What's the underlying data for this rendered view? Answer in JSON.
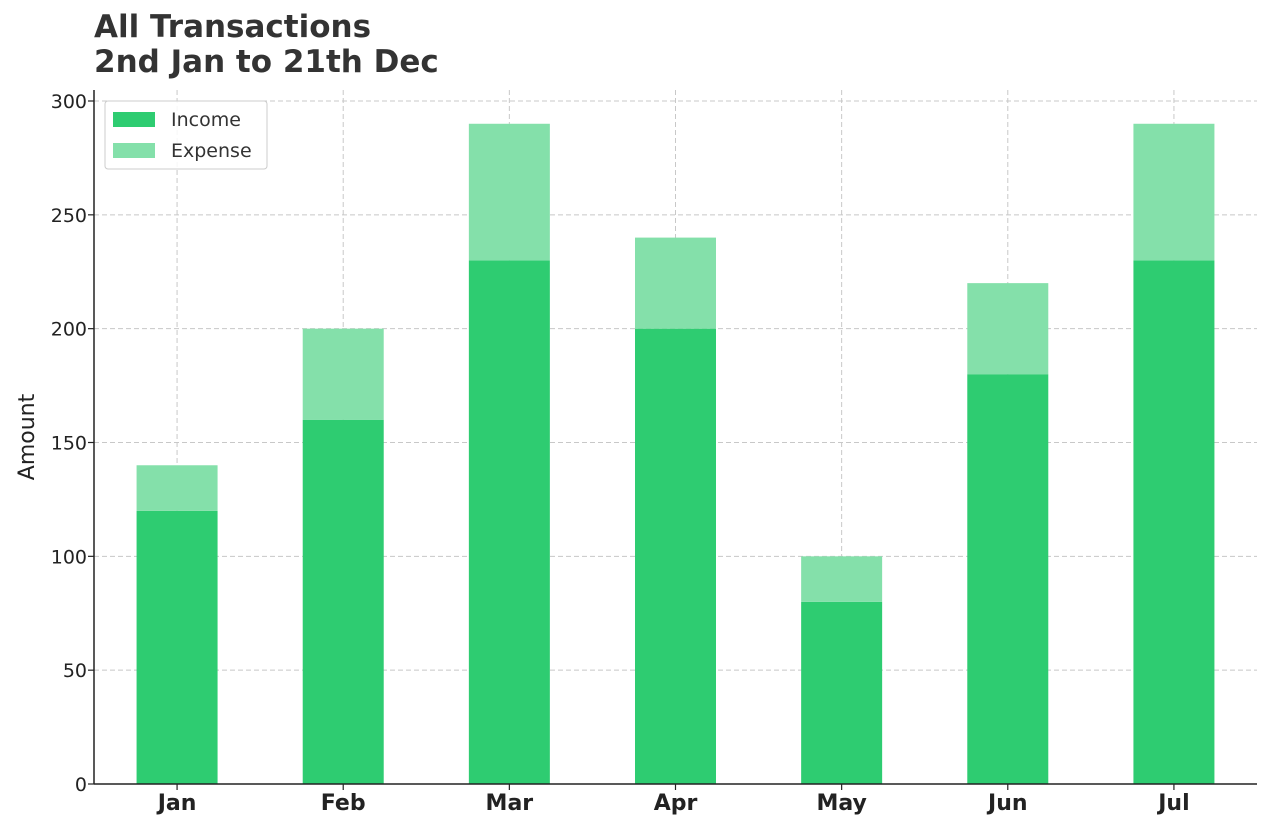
{
  "chart_data": {
    "type": "bar",
    "stacked": true,
    "title": "All Transactions",
    "subtitle": "2nd Jan to 21th Dec",
    "xlabel": "",
    "ylabel": "Amount",
    "categories": [
      "Jan",
      "Feb",
      "Mar",
      "Apr",
      "May",
      "Jun",
      "Jul"
    ],
    "series": [
      {
        "name": "Income",
        "color": "#2ecc71",
        "values": [
          120,
          160,
          230,
          200,
          80,
          180,
          230
        ]
      },
      {
        "name": "Expense",
        "color": "#84e0aa",
        "values": [
          20,
          40,
          60,
          40,
          20,
          40,
          60
        ]
      }
    ],
    "ylim": [
      0,
      300
    ],
    "yticks": [
      0,
      50,
      100,
      150,
      200,
      250,
      300
    ],
    "grid": true,
    "legend": "top-left"
  }
}
